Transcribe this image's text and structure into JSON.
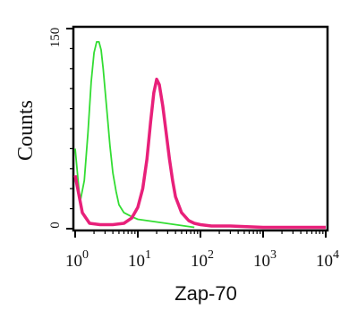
{
  "chart_data": {
    "type": "line",
    "title": "",
    "xlabel": "Zap-70",
    "ylabel": "Counts",
    "x_scale": "log",
    "xlim": [
      1,
      10000
    ],
    "ylim": [
      0,
      150
    ],
    "grid": false,
    "x_ticks": [
      {
        "base": "10",
        "exp": "0",
        "value": 1
      },
      {
        "base": "10",
        "exp": "1",
        "value": 10
      },
      {
        "base": "10",
        "exp": "2",
        "value": 100
      },
      {
        "base": "10",
        "exp": "3",
        "value": 1000
      },
      {
        "base": "10",
        "exp": "4",
        "value": 10000
      }
    ],
    "y_ticks": [
      {
        "label": "0",
        "value": 0
      },
      {
        "label": "150",
        "value": 150
      }
    ],
    "series": [
      {
        "color": "#33dd33",
        "x": [
          1,
          1.2,
          1.4,
          1.6,
          1.8,
          2.0,
          2.2,
          2.4,
          2.6,
          2.8,
          3.0,
          3.3,
          3.6,
          4.0,
          4.5,
          5.0,
          6.0,
          8.0,
          10,
          20,
          40,
          80
        ],
        "y": [
          60,
          20,
          36,
          72,
          110,
          132,
          140,
          140,
          134,
          120,
          104,
          82,
          62,
          42,
          28,
          18,
          12,
          9,
          7,
          5,
          3,
          1
        ]
      },
      {
        "color": "#e8207a",
        "x": [
          1,
          1.3,
          1.7,
          2.5,
          4,
          6,
          8,
          10,
          12,
          14,
          16,
          18,
          20,
          22,
          25,
          28,
          32,
          36,
          40,
          50,
          65,
          80,
          100,
          150,
          300,
          1000,
          10000
        ],
        "y": [
          40,
          12,
          4,
          3,
          3,
          4,
          8,
          16,
          30,
          52,
          80,
          102,
          112,
          108,
          92,
          74,
          52,
          36,
          24,
          12,
          6,
          4,
          3,
          2,
          2,
          1,
          1
        ]
      }
    ]
  }
}
